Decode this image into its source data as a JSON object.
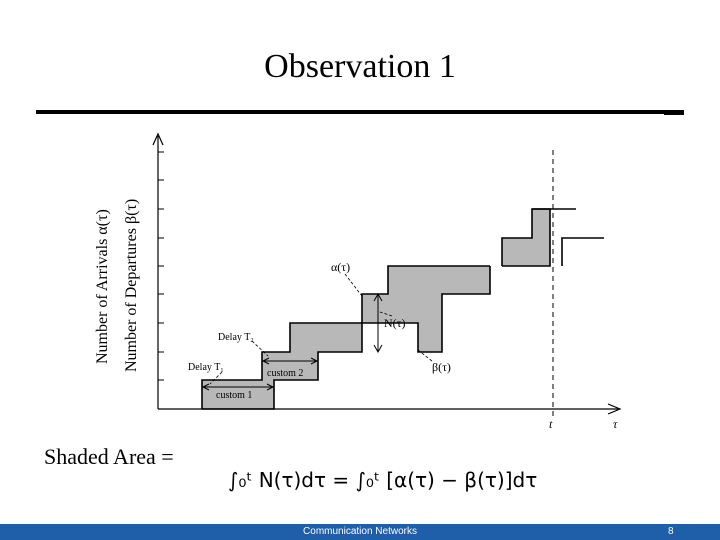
{
  "slide": {
    "title": "Observation 1"
  },
  "diagram": {
    "y_axis_label_1": "Number of Arrivals α(τ)",
    "y_axis_label_2": "Number of Departures β(τ)",
    "label_alpha": "α(τ)",
    "label_beta": "β(τ)",
    "label_N": "N(τ)",
    "label_delay_t2": "Delay T₂",
    "label_delay_t1": "Delay T₁",
    "label_custom1": "custom 1",
    "label_custom2": "custom 2",
    "axis_t": "t",
    "axis_tau": "τ",
    "shade_color": "#b8b8b8"
  },
  "equation": {
    "lhs": "Shaded Area =",
    "formula": "∫₀ᵗ N(τ)dτ = ∫₀ᵗ [α(τ) − β(τ)]dτ"
  },
  "footer": {
    "text": "Communication Networks",
    "page": "8",
    "color": "#1f5ea9"
  }
}
